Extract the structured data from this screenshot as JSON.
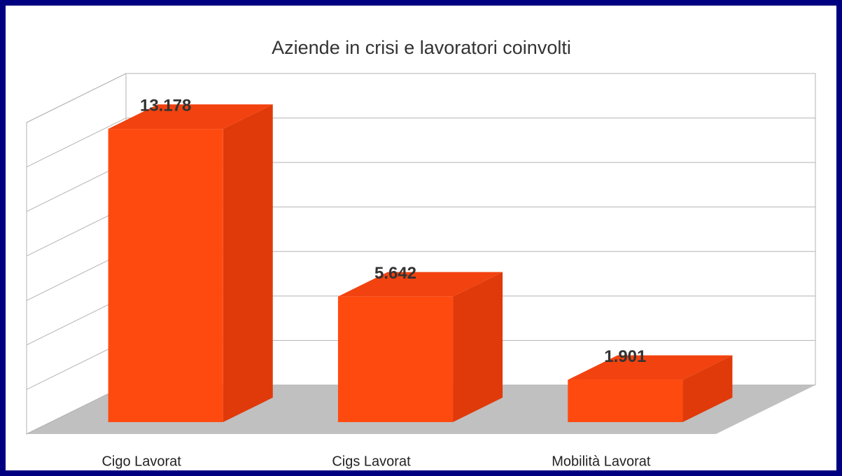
{
  "chart_data": {
    "type": "bar3d",
    "title": "Aziende in crisi e lavoratori coinvolti",
    "categories": [
      "Cigo Lavorat",
      "Cigs Lavorat",
      "Mobilità Lavorat"
    ],
    "values": [
      13178,
      5642,
      1901
    ],
    "value_labels": [
      "13.178",
      "5.642",
      "1.901"
    ],
    "color": "#ff4a0f",
    "ylim": [
      0,
      14000
    ],
    "yticks": [
      0,
      2000,
      4000,
      6000,
      8000,
      10000,
      12000,
      14000
    ],
    "grid": true
  }
}
